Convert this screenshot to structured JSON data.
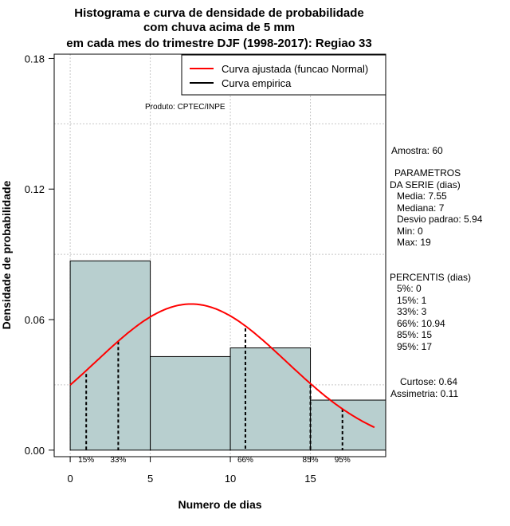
{
  "chart_data": {
    "type": "bar",
    "title_lines": [
      "Histograma e curva de densidade de probabilidade",
      "com chuva acima de 5 mm",
      "em cada mes do trimestre DJF (1998-2017): Regiao 33"
    ],
    "xlabel": "Numero de dias",
    "ylabel": "Densidade de probabilidade",
    "xlim": [
      -1,
      19.7
    ],
    "ylim": [
      -0.003,
      0.182
    ],
    "xticks": [
      0,
      5,
      10,
      15
    ],
    "yticks": [
      0.0,
      0.06,
      0.12,
      0.18
    ],
    "ytick_labels": [
      "0.00",
      "0.06",
      "0.12",
      "0.18"
    ],
    "grid": true,
    "bins": [
      {
        "from": 0,
        "to": 5,
        "density": 0.087
      },
      {
        "from": 5,
        "to": 10,
        "density": 0.043
      },
      {
        "from": 10,
        "to": 15,
        "density": 0.047
      },
      {
        "from": 15,
        "to": 19.7,
        "density": 0.023
      }
    ],
    "normal_curve": {
      "name": "Curva ajustada (funcao Normal)",
      "mean": 7.55,
      "sd": 5.94,
      "x_from": 0,
      "x_to": 19,
      "color": "#ff0000"
    },
    "empirical_curve": {
      "name": "Curva empirica",
      "color": "#000000"
    },
    "percentile_markers": [
      {
        "label": "15%",
        "x": 1,
        "density": 0.035
      },
      {
        "label": "33%",
        "x": 3,
        "density": 0.05
      },
      {
        "label": "66%",
        "x": 10.94,
        "density": 0.056
      },
      {
        "label": "85%",
        "x": 15,
        "density": 0.03
      },
      {
        "label": "95%",
        "x": 17,
        "density": 0.019
      }
    ],
    "legend_position": "top-right",
    "bar_color": "#b8cfcf"
  },
  "product_label": "Produto: CPTEC/INPE",
  "stats": {
    "sample": "Amostra: 60",
    "params_header_1": "PARAMETROS",
    "params_header_2": "DA SERIE (dias)",
    "media": "Media: 7.55",
    "mediana": "Mediana: 7",
    "desvio": "Desvio padrao: 5.94",
    "min": "Min: 0",
    "max": "Max: 19",
    "percentis_header": "PERCENTIS (dias)",
    "p5": "5%: 0",
    "p15": "15%: 1",
    "p33": "33%: 3",
    "p66": "66%: 10.94",
    "p85": "85%: 15",
    "p95": "95%: 17",
    "curtose": "Curtose: 0.64",
    "assimetria": "Assimetria: 0.11"
  }
}
